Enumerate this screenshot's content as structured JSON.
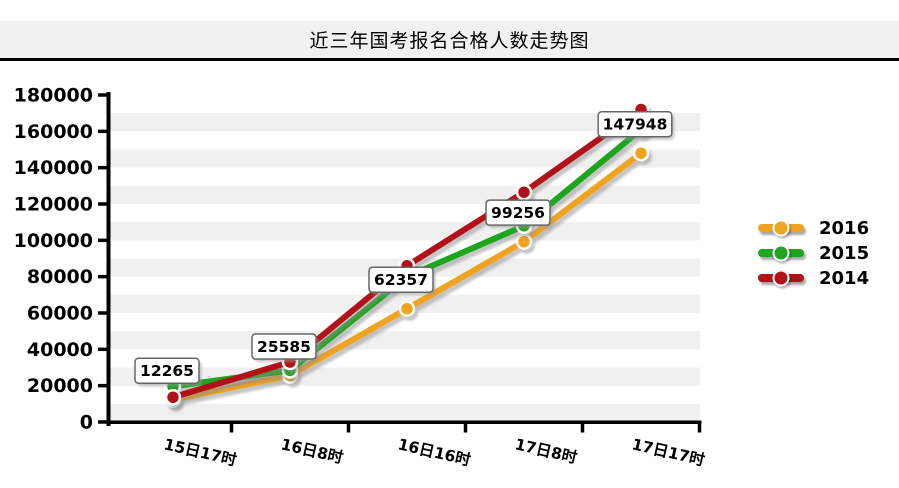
{
  "page": {
    "title": "近三年国考报名合格人数走势图"
  },
  "chart_data": {
    "type": "line",
    "title": "近三年国考报名合格人数走势图",
    "categories": [
      "15日17时",
      "16日8时",
      "16日16时",
      "17日8时",
      "17日17时"
    ],
    "series": [
      {
        "name": "2016",
        "color": "#efa31f",
        "values": [
          12265,
          25585,
          62357,
          99256,
          147948
        ],
        "data_labels": [
          "12265",
          "25585",
          "62357",
          "99256",
          "147948"
        ]
      },
      {
        "name": "2015",
        "color": "#1ea51e",
        "values": [
          19600,
          28400,
          80000,
          108000,
          161000
        ]
      },
      {
        "name": "2014",
        "color": "#b11218",
        "values": [
          13600,
          33000,
          86000,
          126500,
          172000
        ]
      }
    ],
    "ylim": [
      0,
      180000
    ],
    "ytick_interval": 20000,
    "ytick_labels": [
      "0",
      "20000",
      "40000",
      "60000",
      "80000",
      "100000",
      "120000",
      "140000",
      "160000",
      "180000"
    ],
    "xlabel": "",
    "ylabel": "",
    "legend_position": "right",
    "legend_entries": [
      "2016",
      "2015",
      "2014"
    ],
    "grid": "alternating horizontal gray bands every 10000",
    "band_color": "#f0f0f0",
    "axis_color": "#000000",
    "labeled_series": "2016"
  }
}
